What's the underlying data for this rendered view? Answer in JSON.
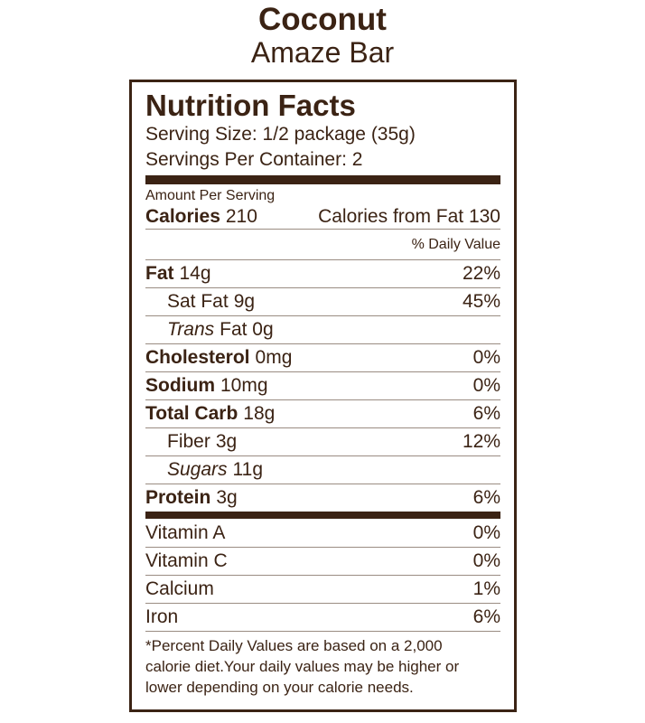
{
  "header": {
    "title": "Coconut",
    "subtitle": "Amaze Bar"
  },
  "label": {
    "heading": "Nutrition Facts",
    "serving_size": "Serving Size: 1/2 package (35g)",
    "servings_per_container": "Servings Per Container: 2",
    "amount_per_serving": "Amount Per Serving",
    "calories": {
      "label": "Calories",
      "value": "210"
    },
    "calories_from_fat": "Calories from Fat 130",
    "daily_value_header": "% Daily Value",
    "nutrients": [
      {
        "name": "Fat",
        "amount": "14g",
        "dv": "22%",
        "style": "bold",
        "indent": false
      },
      {
        "name": "Sat Fat",
        "amount": "9g",
        "dv": "45%",
        "style": "normal",
        "indent": true
      },
      {
        "name": "Trans",
        "amount": "Fat 0g",
        "style": "italic",
        "indent": true
      },
      {
        "name": "Cholesterol",
        "amount": "0mg",
        "dv": "0%",
        "style": "bold",
        "indent": false
      },
      {
        "name": "Sodium",
        "amount": "10mg",
        "dv": "0%",
        "style": "bold",
        "indent": false
      },
      {
        "name": "Total Carb",
        "amount": "18g",
        "dv": "6%",
        "style": "bold",
        "indent": false
      },
      {
        "name": "Fiber",
        "amount": "3g",
        "dv": "12%",
        "style": "normal",
        "indent": true
      },
      {
        "name": "Sugars",
        "amount": "11g",
        "style": "italic",
        "indent": true
      },
      {
        "name": "Protein",
        "amount": "3g",
        "dv": "6%",
        "style": "bold",
        "indent": false
      }
    ],
    "vitamins": [
      {
        "name": "Vitamin A",
        "dv": "0%"
      },
      {
        "name": "Vitamin C",
        "dv": "0%"
      },
      {
        "name": "Calcium",
        "dv": "1%"
      },
      {
        "name": "Iron",
        "dv": "6%"
      }
    ],
    "footnote": [
      "*Percent Daily Values are based on a 2,000",
      "calorie diet.Your daily values may be higher or",
      "lower depending on your calorie needs."
    ]
  }
}
